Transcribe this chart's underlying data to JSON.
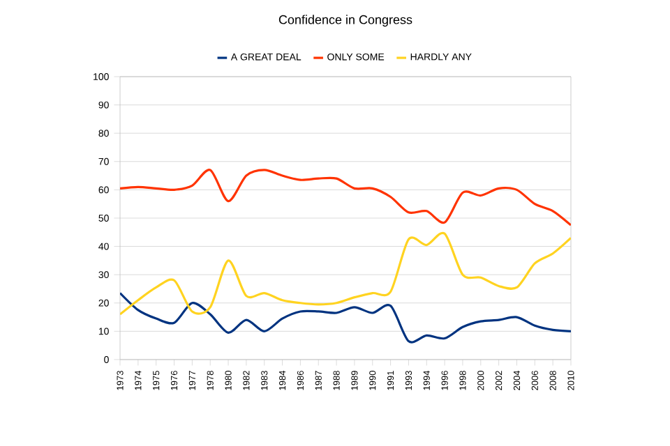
{
  "chart_data": {
    "type": "line",
    "title": "Confidence in Congress",
    "categories": [
      "1973",
      "1974",
      "1975",
      "1976",
      "1977",
      "1978",
      "1980",
      "1982",
      "1983",
      "1984",
      "1986",
      "1987",
      "1988",
      "1989",
      "1990",
      "1991",
      "1993",
      "1994",
      "1996",
      "1998",
      "2000",
      "2002",
      "2004",
      "2006",
      "2008",
      "2010"
    ],
    "series": [
      {
        "name": "A GREAT DEAL",
        "color": "#003380",
        "values": [
          23.5,
          17.5,
          14.5,
          13,
          20,
          16,
          9.5,
          14,
          10,
          14.5,
          17,
          17,
          16.5,
          18.5,
          16.5,
          19,
          6.5,
          8.5,
          7.5,
          11.5,
          13.5,
          14,
          15,
          12,
          10.5,
          10
        ]
      },
      {
        "name": "ONLY SOME",
        "color": "#ff3300",
        "values": [
          60.5,
          61,
          60.5,
          60,
          61.5,
          67,
          56,
          65,
          67,
          65,
          63.5,
          64,
          64,
          60.5,
          60.5,
          57.5,
          52,
          52.5,
          48.5,
          59,
          58,
          60.5,
          60,
          55,
          52.5,
          47.5
        ]
      },
      {
        "name": "HARDLY ANY",
        "color": "#ffd320",
        "values": [
          16,
          21,
          25.5,
          28,
          17,
          18.5,
          35,
          22.5,
          23.5,
          21,
          20,
          19.5,
          20,
          22,
          23.5,
          24,
          42.5,
          40.5,
          44.5,
          30,
          29,
          26,
          25.5,
          34,
          37.5,
          43
        ]
      }
    ],
    "ylim": [
      0,
      100
    ],
    "yticks": [
      0,
      10,
      20,
      30,
      40,
      50,
      60,
      70,
      80,
      90,
      100
    ],
    "grid": "y",
    "legend": "top",
    "marker": "none",
    "line_style": "solid"
  }
}
